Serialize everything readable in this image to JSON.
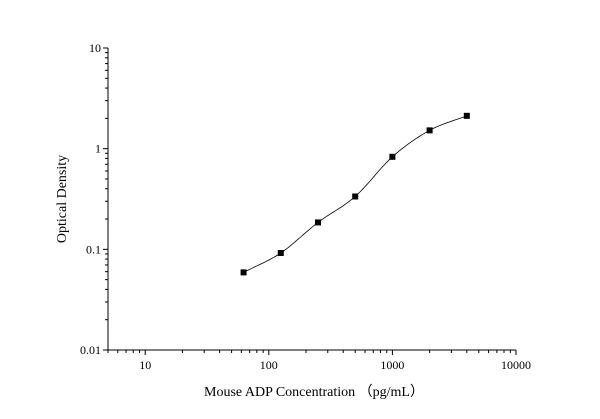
{
  "chart_data": {
    "type": "scatter",
    "xlabel": "Mouse ADP Concentration  （pg/mL）",
    "ylabel": "Optical Density",
    "xscale": "log",
    "yscale": "log",
    "xlim": [
      5,
      10000
    ],
    "ylim": [
      0.01,
      10
    ],
    "x_ticks": [
      {
        "value": 10,
        "label": "10"
      },
      {
        "value": 100,
        "label": "100"
      },
      {
        "value": 1000,
        "label": "1000"
      },
      {
        "value": 10000,
        "label": "10000"
      }
    ],
    "y_ticks": [
      {
        "value": 0.01,
        "label": "0.01"
      },
      {
        "value": 0.1,
        "label": "0.1"
      },
      {
        "value": 1,
        "label": "1"
      },
      {
        "value": 10,
        "label": "10"
      }
    ],
    "grid": false,
    "marker_color": "#000000",
    "series": [
      {
        "x": [
          62.5,
          125,
          250,
          500,
          1000,
          2000,
          4000
        ],
        "y": [
          0.059,
          0.092,
          0.185,
          0.335,
          0.83,
          1.52,
          2.12
        ]
      }
    ]
  }
}
